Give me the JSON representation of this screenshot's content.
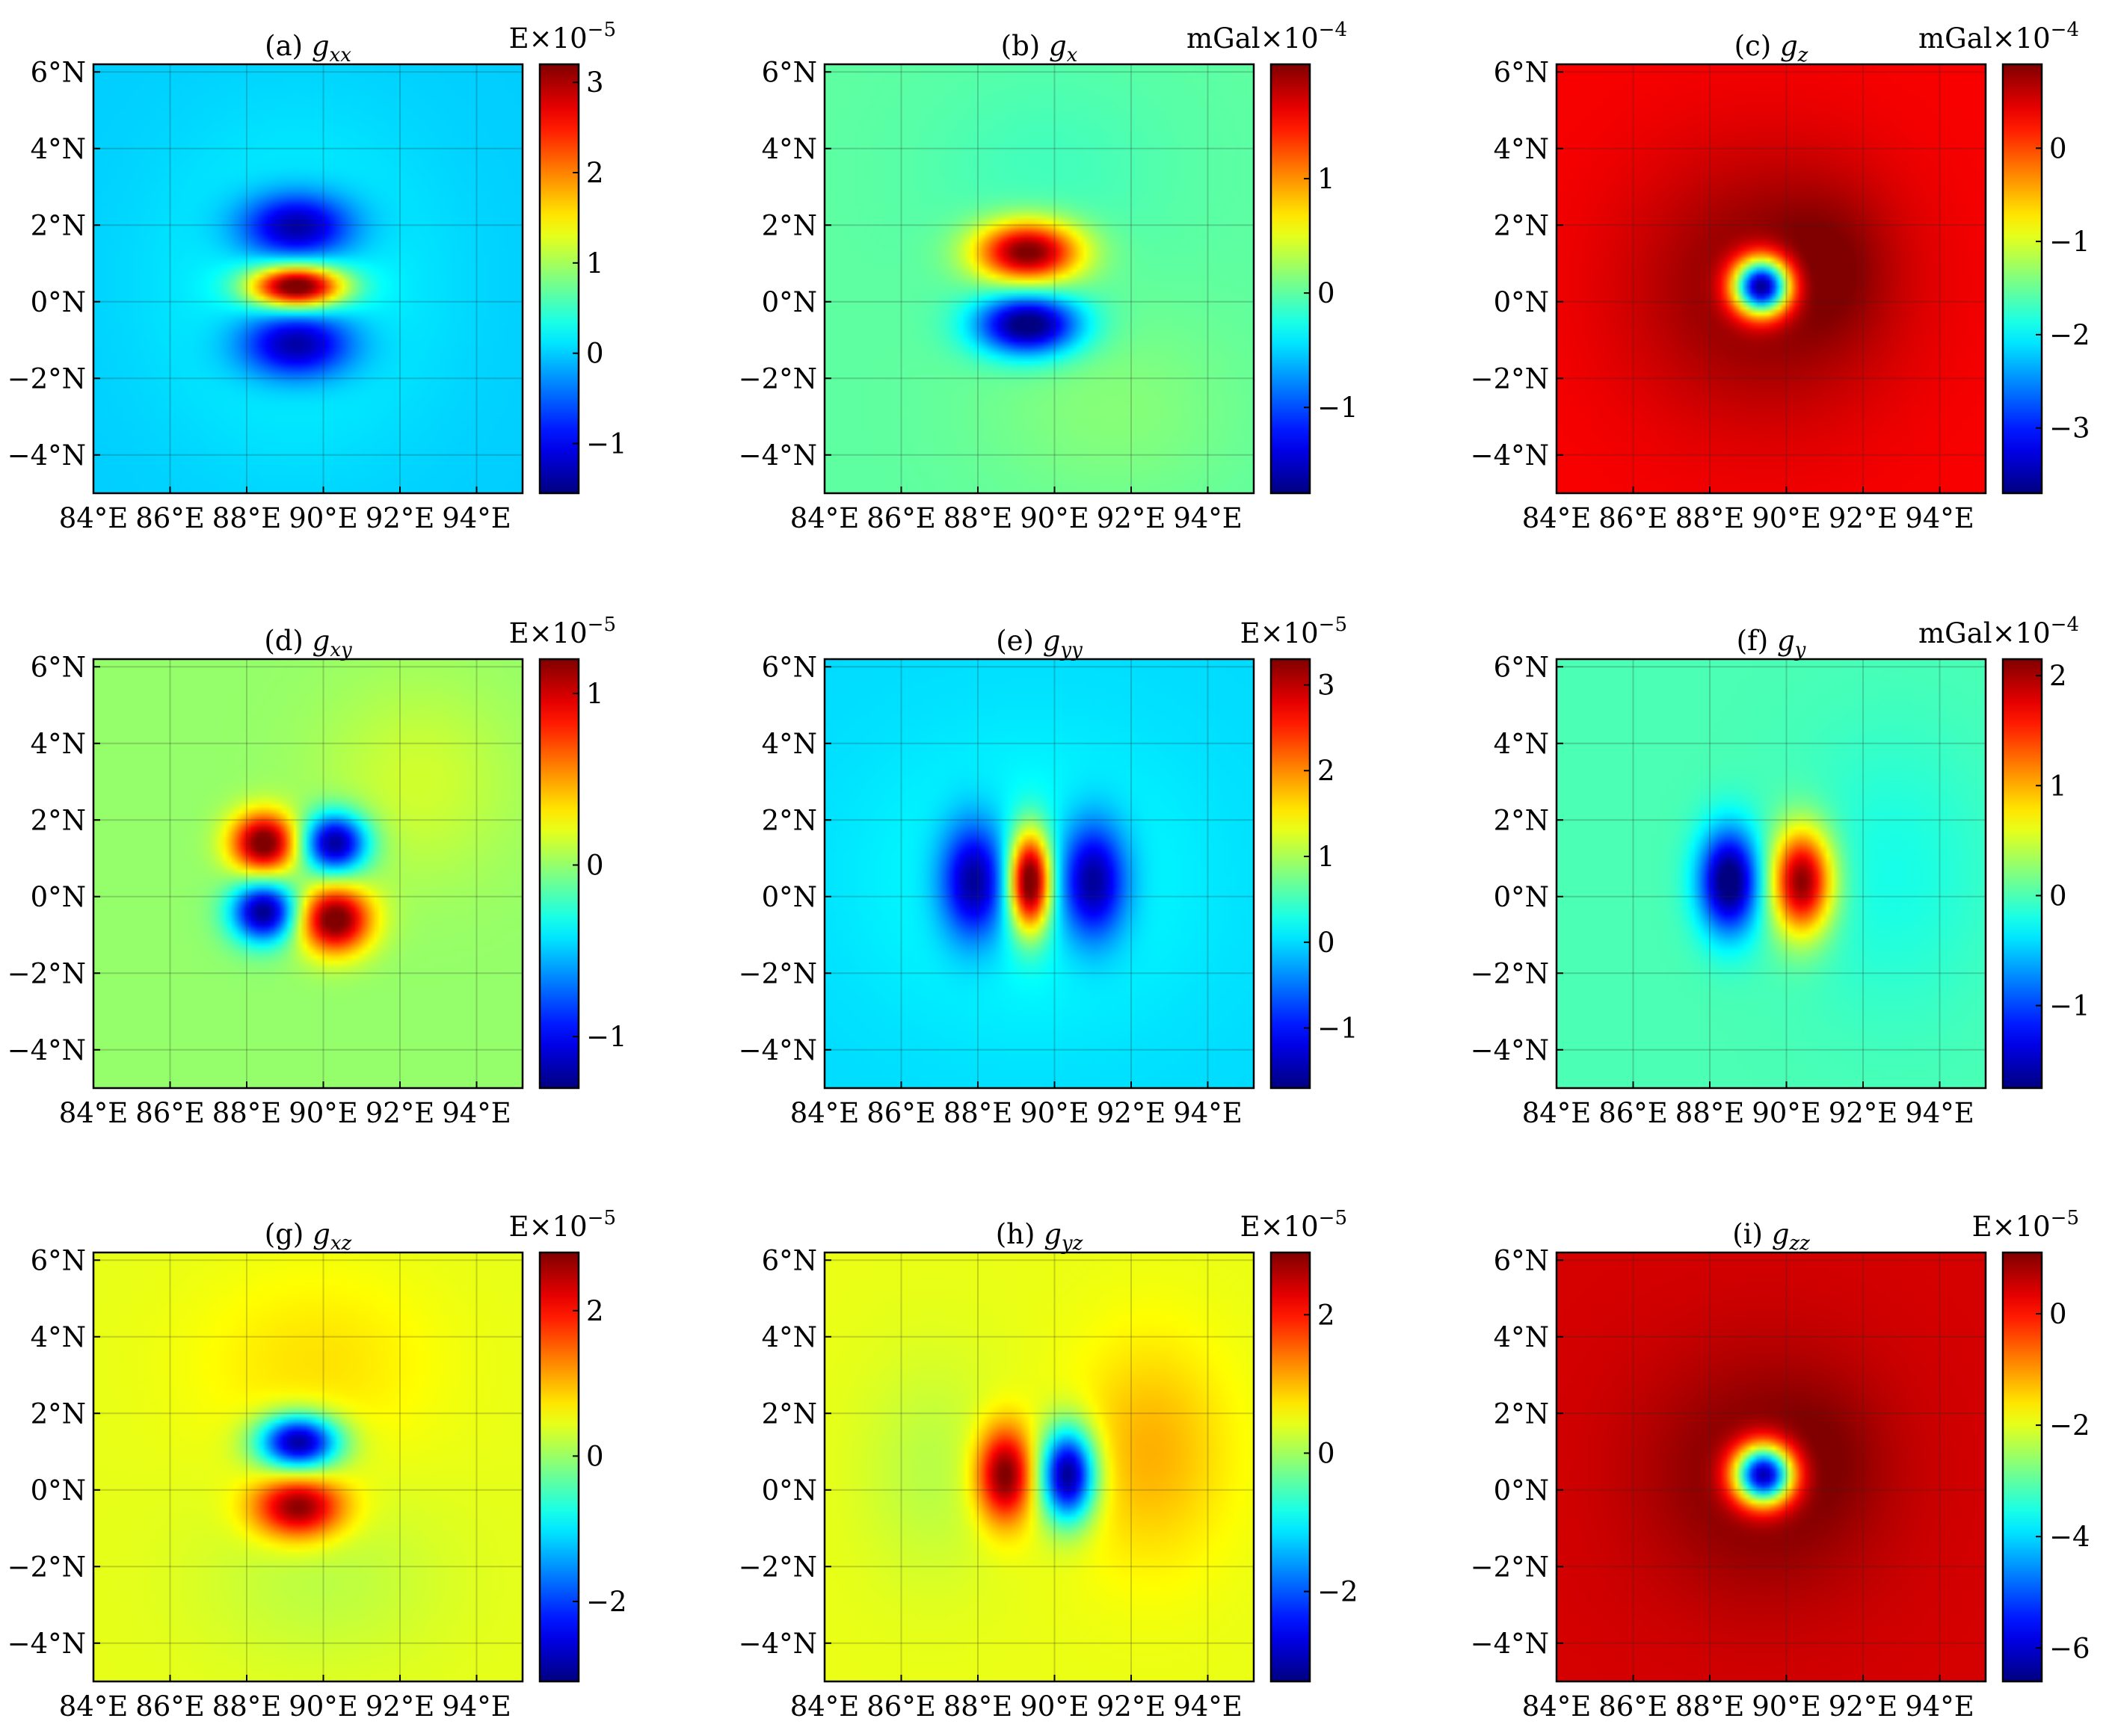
{
  "figure": {
    "colormap": "jet"
  },
  "chart_data": [
    {
      "panel": "(a)",
      "symbol": "g",
      "subscript": "xx",
      "type": "heatmap",
      "unit": "E",
      "exponent": "-5",
      "clim": [
        -1.55,
        3.2
      ],
      "cbar_ticks": [
        -1,
        0,
        1,
        2,
        3
      ],
      "xlim": [
        84,
        95.2
      ],
      "ylim": [
        -5,
        6.2
      ],
      "xticks": [
        84,
        86,
        88,
        90,
        92,
        94
      ],
      "xticklabels": [
        "84°E",
        "86°E",
        "88°E",
        "90°E",
        "92°E",
        "94°E"
      ],
      "yticks": [
        -4,
        -2,
        0,
        2,
        4,
        6
      ],
      "yticklabels": [
        "−4°N",
        "−2°N",
        "0°N",
        "2°N",
        "4°N",
        "6°N"
      ],
      "background": 0.0,
      "features": [
        {
          "x": 89.3,
          "y": 0.4,
          "sx": 0.85,
          "sy": 0.38,
          "amp": 3.3
        },
        {
          "x": 89.3,
          "y": 1.95,
          "sx": 1.0,
          "sy": 0.6,
          "amp": -1.6
        },
        {
          "x": 89.3,
          "y": -1.1,
          "sx": 1.0,
          "sy": 0.6,
          "amp": -1.6
        },
        {
          "x": 89.3,
          "y": 0.4,
          "sx": 2.6,
          "sy": 3.0,
          "amp": 0.25
        }
      ]
    },
    {
      "panel": "(b)",
      "symbol": "g",
      "subscript": "x",
      "type": "heatmap",
      "unit": "mGal",
      "exponent": "-4",
      "clim": [
        -1.75,
        2.0
      ],
      "cbar_ticks": [
        -1,
        0,
        1
      ],
      "xlim": [
        84,
        95.2
      ],
      "ylim": [
        -5,
        6.2
      ],
      "xticks": [
        84,
        86,
        88,
        90,
        92,
        94
      ],
      "xticklabels": [
        "84°E",
        "86°E",
        "88°E",
        "90°E",
        "92°E",
        "94°E"
      ],
      "yticks": [
        -4,
        -2,
        0,
        2,
        4,
        6
      ],
      "yticklabels": [
        "−4°N",
        "−2°N",
        "0°N",
        "2°N",
        "4°N",
        "6°N"
      ],
      "background": 0.0,
      "features": [
        {
          "x": 89.3,
          "y": 1.3,
          "sx": 0.95,
          "sy": 0.55,
          "amp": 2.1
        },
        {
          "x": 89.3,
          "y": -0.6,
          "sx": 0.95,
          "sy": 0.55,
          "amp": -1.9
        },
        {
          "x": 89.8,
          "y": 3.5,
          "sx": 2.2,
          "sy": 1.8,
          "amp": -0.1
        },
        {
          "x": 91.5,
          "y": -2.8,
          "sx": 2.4,
          "sy": 1.8,
          "amp": 0.15
        }
      ]
    },
    {
      "panel": "(c)",
      "symbol": "g",
      "subscript": "z",
      "type": "heatmap",
      "unit": "mGal",
      "exponent": "-4",
      "clim": [
        -3.7,
        0.9
      ],
      "cbar_ticks": [
        -3,
        -2,
        -1,
        0
      ],
      "xlim": [
        84,
        95.2
      ],
      "ylim": [
        -5,
        6.2
      ],
      "xticks": [
        84,
        86,
        88,
        90,
        92,
        94
      ],
      "xticklabels": [
        "84°E",
        "86°E",
        "88°E",
        "90°E",
        "92°E",
        "94°E"
      ],
      "yticks": [
        -4,
        -2,
        0,
        2,
        4,
        6
      ],
      "yticklabels": [
        "−4°N",
        "−2°N",
        "0°N",
        "2°N",
        "4°N",
        "6°N"
      ],
      "background": 0.35,
      "features": [
        {
          "x": 89.35,
          "y": 0.4,
          "sx": 0.52,
          "sy": 0.52,
          "amp": -4.6
        },
        {
          "x": 89.35,
          "y": 0.4,
          "sx": 2.4,
          "sy": 2.4,
          "amp": 0.55
        },
        {
          "x": 91.2,
          "y": 1.0,
          "sx": 1.1,
          "sy": 1.4,
          "amp": 0.25
        }
      ]
    },
    {
      "panel": "(d)",
      "symbol": "g",
      "subscript": "xy",
      "type": "heatmap",
      "unit": "E",
      "exponent": "-5",
      "clim": [
        -1.3,
        1.2
      ],
      "cbar_ticks": [
        -1,
        0,
        1
      ],
      "xlim": [
        84,
        95.2
      ],
      "ylim": [
        -5,
        6.2
      ],
      "xticks": [
        84,
        86,
        88,
        90,
        92,
        94
      ],
      "xticklabels": [
        "84°E",
        "86°E",
        "88°E",
        "90°E",
        "92°E",
        "94°E"
      ],
      "yticks": [
        -4,
        -2,
        0,
        2,
        4,
        6
      ],
      "yticklabels": [
        "−4°N",
        "−2°N",
        "0°N",
        "2°N",
        "4°N",
        "6°N"
      ],
      "background": 0.0,
      "features": [
        {
          "x": 88.45,
          "y": 1.4,
          "sx": 0.6,
          "sy": 0.55,
          "amp": 1.3
        },
        {
          "x": 90.3,
          "y": 1.4,
          "sx": 0.6,
          "sy": 0.55,
          "amp": -1.3
        },
        {
          "x": 88.45,
          "y": -0.4,
          "sx": 0.6,
          "sy": 0.55,
          "amp": -1.3
        },
        {
          "x": 90.3,
          "y": -0.6,
          "sx": 0.65,
          "sy": 0.6,
          "amp": 1.3
        },
        {
          "x": 92.5,
          "y": 3.0,
          "sx": 1.8,
          "sy": 1.8,
          "amp": 0.15
        }
      ]
    },
    {
      "panel": "(e)",
      "symbol": "g",
      "subscript": "yy",
      "type": "heatmap",
      "unit": "E",
      "exponent": "-5",
      "clim": [
        -1.7,
        3.3
      ],
      "cbar_ticks": [
        -1,
        0,
        1,
        2,
        3
      ],
      "xlim": [
        84,
        95.2
      ],
      "ylim": [
        -5,
        6.2
      ],
      "xticks": [
        84,
        86,
        88,
        90,
        92,
        94
      ],
      "xticklabels": [
        "84°E",
        "86°E",
        "88°E",
        "90°E",
        "92°E",
        "94°E"
      ],
      "yticks": [
        -4,
        -2,
        0,
        2,
        4,
        6
      ],
      "yticklabels": [
        "−4°N",
        "−2°N",
        "0°N",
        "2°N",
        "4°N",
        "6°N"
      ],
      "background": 0.0,
      "features": [
        {
          "x": 89.35,
          "y": 0.4,
          "sx": 0.38,
          "sy": 0.9,
          "amp": 3.4
        },
        {
          "x": 87.9,
          "y": 0.4,
          "sx": 0.6,
          "sy": 1.05,
          "amp": -1.8
        },
        {
          "x": 91.0,
          "y": 0.4,
          "sx": 0.6,
          "sy": 1.05,
          "amp": -1.8
        },
        {
          "x": 89.35,
          "y": 0.4,
          "sx": 3.0,
          "sy": 2.6,
          "amp": 0.25
        }
      ]
    },
    {
      "panel": "(f)",
      "symbol": "g",
      "subscript": "y",
      "type": "heatmap",
      "unit": "mGal",
      "exponent": "-4",
      "clim": [
        -1.75,
        2.15
      ],
      "cbar_ticks": [
        -1,
        0,
        1,
        2
      ],
      "xlim": [
        84,
        95.2
      ],
      "ylim": [
        -5,
        6.2
      ],
      "xticks": [
        84,
        86,
        88,
        90,
        92,
        94
      ],
      "xticklabels": [
        "84°E",
        "86°E",
        "88°E",
        "90°E",
        "92°E",
        "94°E"
      ],
      "yticks": [
        -4,
        -2,
        0,
        2,
        4,
        6
      ],
      "yticklabels": [
        "−4°N",
        "−2°N",
        "0°N",
        "2°N",
        "4°N",
        "6°N"
      ],
      "background": 0.0,
      "features": [
        {
          "x": 88.5,
          "y": 0.4,
          "sx": 0.55,
          "sy": 0.95,
          "amp": -1.9
        },
        {
          "x": 90.4,
          "y": 0.4,
          "sx": 0.55,
          "sy": 0.95,
          "amp": 2.2
        },
        {
          "x": 92.8,
          "y": 0.6,
          "sx": 1.8,
          "sy": 2.5,
          "amp": -0.2
        }
      ]
    },
    {
      "panel": "(g)",
      "symbol": "g",
      "subscript": "xz",
      "type": "heatmap",
      "unit": "E",
      "exponent": "-5",
      "clim": [
        -3.1,
        2.8
      ],
      "cbar_ticks": [
        -2,
        0,
        2
      ],
      "xlim": [
        84,
        95.2
      ],
      "ylim": [
        -5,
        6.2
      ],
      "xticks": [
        84,
        86,
        88,
        90,
        92,
        94
      ],
      "xticklabels": [
        "84°E",
        "86°E",
        "88°E",
        "90°E",
        "92°E",
        "94°E"
      ],
      "yticks": [
        -4,
        -2,
        0,
        2,
        4,
        6
      ],
      "yticklabels": [
        "−4°N",
        "−2°N",
        "0°N",
        "2°N",
        "4°N",
        "6°N"
      ],
      "background": 0.45,
      "features": [
        {
          "x": 89.35,
          "y": 1.25,
          "sx": 0.75,
          "sy": 0.5,
          "amp": -3.5
        },
        {
          "x": 89.35,
          "y": -0.45,
          "sx": 0.8,
          "sy": 0.55,
          "amp": 2.4
        },
        {
          "x": 89.8,
          "y": 3.3,
          "sx": 2.2,
          "sy": 1.7,
          "amp": 0.3
        },
        {
          "x": 90.0,
          "y": -2.3,
          "sx": 2.2,
          "sy": 1.6,
          "amp": -0.25
        }
      ]
    },
    {
      "panel": "(h)",
      "symbol": "g",
      "subscript": "yz",
      "type": "heatmap",
      "unit": "E",
      "exponent": "-5",
      "clim": [
        -3.3,
        2.9
      ],
      "cbar_ticks": [
        -2,
        0,
        2
      ],
      "xlim": [
        84,
        95.2
      ],
      "ylim": [
        -5,
        6.2
      ],
      "xticks": [
        84,
        86,
        88,
        90,
        92,
        94
      ],
      "xticklabels": [
        "84°E",
        "86°E",
        "88°E",
        "90°E",
        "92°E",
        "94°E"
      ],
      "yticks": [
        -4,
        -2,
        0,
        2,
        4,
        6
      ],
      "yticklabels": [
        "−4°N",
        "−2°N",
        "0°N",
        "2°N",
        "4°N",
        "6°N"
      ],
      "background": 0.45,
      "features": [
        {
          "x": 88.7,
          "y": 0.4,
          "sx": 0.5,
          "sy": 0.85,
          "amp": 2.6
        },
        {
          "x": 90.35,
          "y": 0.4,
          "sx": 0.5,
          "sy": 0.85,
          "amp": -3.8
        },
        {
          "x": 92.5,
          "y": 1.0,
          "sx": 1.4,
          "sy": 2.0,
          "amp": 0.6
        },
        {
          "x": 86.8,
          "y": 0.5,
          "sx": 1.3,
          "sy": 2.0,
          "amp": -0.3
        }
      ]
    },
    {
      "panel": "(i)",
      "symbol": "g",
      "subscript": "zz",
      "type": "heatmap",
      "unit": "E",
      "exponent": "-5",
      "clim": [
        -6.6,
        1.1
      ],
      "cbar_ticks": [
        -6,
        -4,
        -2,
        0
      ],
      "xlim": [
        84,
        95.2
      ],
      "ylim": [
        -5,
        6.2
      ],
      "xticks": [
        84,
        86,
        88,
        90,
        92,
        94
      ],
      "xticklabels": [
        "84°E",
        "86°E",
        "88°E",
        "90°E",
        "92°E",
        "94°E"
      ],
      "yticks": [
        -4,
        -2,
        0,
        2,
        4,
        6
      ],
      "yticklabels": [
        "−4°N",
        "−2°N",
        "0°N",
        "2°N",
        "4°N",
        "6°N"
      ],
      "background": 0.45,
      "features": [
        {
          "x": 89.4,
          "y": 0.4,
          "sx": 0.55,
          "sy": 0.55,
          "amp": -7.5
        },
        {
          "x": 89.4,
          "y": 0.4,
          "sx": 2.2,
          "sy": 2.2,
          "amp": 0.75
        },
        {
          "x": 91.0,
          "y": 1.0,
          "sx": 1.0,
          "sy": 1.3,
          "amp": 0.2
        }
      ]
    }
  ]
}
